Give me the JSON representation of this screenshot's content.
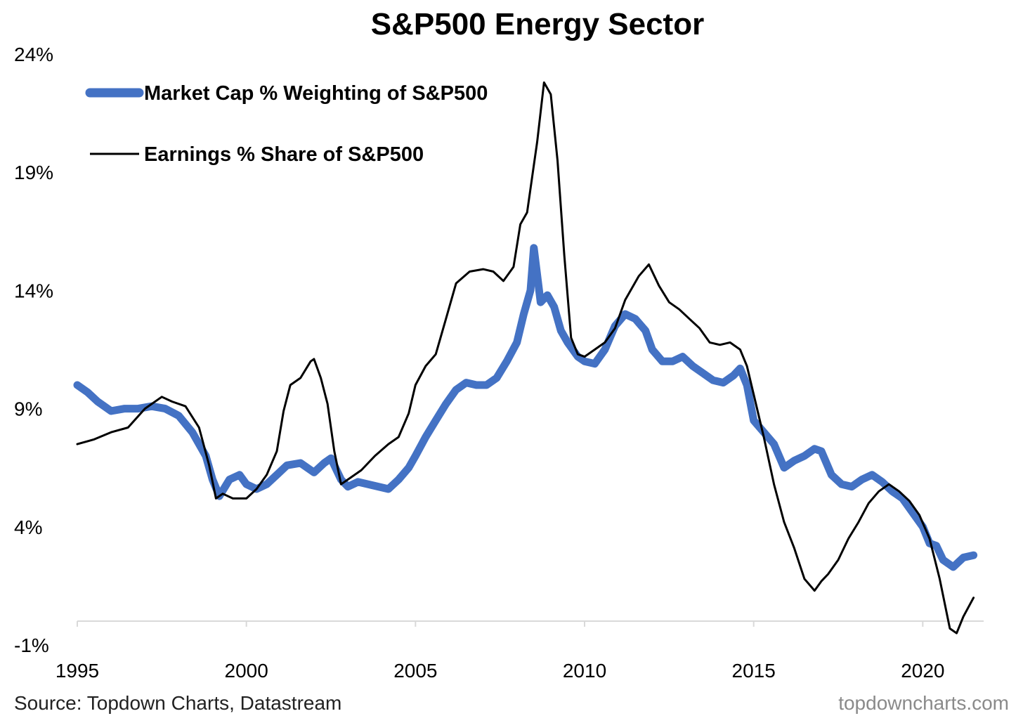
{
  "chart_data": {
    "type": "line",
    "title": "S&P500 Energy Sector",
    "subtitle": "",
    "xlabel": "",
    "ylabel": "",
    "xlim": [
      1995,
      2021.8
    ],
    "ylim": [
      -1,
      24
    ],
    "x_ticks": [
      1995,
      2000,
      2005,
      2010,
      2015,
      2020
    ],
    "x_tick_labels": [
      "1995",
      "2000",
      "2005",
      "2010",
      "2015",
      "2020"
    ],
    "y_ticks": [
      -1,
      4,
      9,
      14,
      19,
      24
    ],
    "y_tick_labels": [
      "-1%",
      "4%",
      "9%",
      "14%",
      "19%",
      "24%"
    ],
    "grid": false,
    "legend_position": "top-left",
    "series": [
      {
        "name": "Market Cap % Weighting of S&P500",
        "color": "#4472C4",
        "x": [
          1995.0,
          1995.3,
          1995.6,
          1996.0,
          1996.4,
          1996.8,
          1997.2,
          1997.6,
          1998.0,
          1998.4,
          1998.8,
          1999.0,
          1999.2,
          1999.5,
          1999.8,
          2000.0,
          2000.3,
          2000.6,
          2000.9,
          2001.2,
          2001.6,
          2002.0,
          2002.3,
          2002.5,
          2002.8,
          2003.0,
          2003.3,
          2003.6,
          2003.9,
          2004.2,
          2004.5,
          2004.8,
          2005.0,
          2005.3,
          2005.6,
          2005.9,
          2006.2,
          2006.5,
          2006.8,
          2007.1,
          2007.4,
          2007.7,
          2008.0,
          2008.2,
          2008.4,
          2008.5,
          2008.7,
          2008.9,
          2009.1,
          2009.3,
          2009.5,
          2009.8,
          2010.0,
          2010.3,
          2010.6,
          2010.9,
          2011.2,
          2011.5,
          2011.8,
          2012.0,
          2012.3,
          2012.6,
          2012.9,
          2013.2,
          2013.5,
          2013.8,
          2014.1,
          2014.4,
          2014.6,
          2014.8,
          2015.0,
          2015.3,
          2015.6,
          2015.9,
          2016.2,
          2016.5,
          2016.8,
          2017.0,
          2017.3,
          2017.6,
          2017.9,
          2018.2,
          2018.5,
          2018.8,
          2019.1,
          2019.4,
          2019.7,
          2020.0,
          2020.2,
          2020.4,
          2020.6,
          2020.9,
          2021.2,
          2021.5
        ],
        "y": [
          10.0,
          9.7,
          9.3,
          8.9,
          9.0,
          9.0,
          9.1,
          9.0,
          8.7,
          8.0,
          7.0,
          6.0,
          5.3,
          6.0,
          6.2,
          5.8,
          5.6,
          5.8,
          6.2,
          6.6,
          6.7,
          6.3,
          6.7,
          6.9,
          6.0,
          5.7,
          5.9,
          5.8,
          5.7,
          5.6,
          6.0,
          6.5,
          7.0,
          7.8,
          8.5,
          9.2,
          9.8,
          10.1,
          10.0,
          10.0,
          10.3,
          11.0,
          11.8,
          13.0,
          14.0,
          15.8,
          13.5,
          13.8,
          13.3,
          12.3,
          11.8,
          11.2,
          11.0,
          10.9,
          11.5,
          12.5,
          13.0,
          12.8,
          12.3,
          11.5,
          11.0,
          11.0,
          11.2,
          10.8,
          10.5,
          10.2,
          10.1,
          10.4,
          10.7,
          10.0,
          8.5,
          8.0,
          7.5,
          6.5,
          6.8,
          7.0,
          7.3,
          7.2,
          6.2,
          5.8,
          5.7,
          6.0,
          6.2,
          5.9,
          5.5,
          5.2,
          4.6,
          4.0,
          3.3,
          3.2,
          2.6,
          2.3,
          2.7,
          2.8
        ]
      },
      {
        "name": "Earnings % Share of S&P500",
        "color": "#000000",
        "x": [
          1995.0,
          1995.5,
          1996.0,
          1996.5,
          1997.0,
          1997.5,
          1997.8,
          1998.2,
          1998.6,
          1998.9,
          1999.1,
          1999.3,
          1999.6,
          2000.0,
          2000.3,
          2000.6,
          2000.9,
          2001.1,
          2001.3,
          2001.6,
          2001.9,
          2002.0,
          2002.2,
          2002.4,
          2002.6,
          2002.8,
          2003.0,
          2003.4,
          2003.8,
          2004.2,
          2004.5,
          2004.8,
          2005.0,
          2005.3,
          2005.6,
          2005.9,
          2006.2,
          2006.6,
          2007.0,
          2007.3,
          2007.6,
          2007.9,
          2008.1,
          2008.3,
          2008.5,
          2008.6,
          2008.8,
          2009.0,
          2009.2,
          2009.4,
          2009.6,
          2009.8,
          2010.0,
          2010.3,
          2010.6,
          2010.9,
          2011.2,
          2011.6,
          2011.9,
          2012.0,
          2012.2,
          2012.5,
          2012.8,
          2013.1,
          2013.4,
          2013.7,
          2014.0,
          2014.3,
          2014.6,
          2014.8,
          2015.0,
          2015.3,
          2015.6,
          2015.9,
          2016.2,
          2016.5,
          2016.8,
          2017.0,
          2017.2,
          2017.5,
          2017.8,
          2018.1,
          2018.4,
          2018.7,
          2019.0,
          2019.3,
          2019.6,
          2019.9,
          2020.2,
          2020.5,
          2020.8,
          2021.0,
          2021.2,
          2021.5
        ],
        "y": [
          7.5,
          7.7,
          8.0,
          8.2,
          9.0,
          9.5,
          9.3,
          9.1,
          8.2,
          6.6,
          5.2,
          5.4,
          5.2,
          5.2,
          5.6,
          6.2,
          7.2,
          8.9,
          10.0,
          10.3,
          11.0,
          11.1,
          10.3,
          9.2,
          7.2,
          5.8,
          6.0,
          6.4,
          7.0,
          7.5,
          7.8,
          8.8,
          10.0,
          10.8,
          11.3,
          12.8,
          14.3,
          14.8,
          14.9,
          14.8,
          14.4,
          15.0,
          16.8,
          17.3,
          19.3,
          20.3,
          22.8,
          22.3,
          19.5,
          15.5,
          12.0,
          11.3,
          11.2,
          11.5,
          11.8,
          12.4,
          13.6,
          14.6,
          15.1,
          14.8,
          14.2,
          13.5,
          13.2,
          12.8,
          12.4,
          11.8,
          11.7,
          11.8,
          11.5,
          10.8,
          9.6,
          7.8,
          5.8,
          4.2,
          3.1,
          1.8,
          1.3,
          1.7,
          2.0,
          2.6,
          3.5,
          4.2,
          5.0,
          5.5,
          5.8,
          5.5,
          5.1,
          4.5,
          3.5,
          1.8,
          -0.3,
          -0.5,
          0.2,
          1.0
        ]
      }
    ]
  },
  "footer": {
    "source": "Source: Topdown Charts, Datastream",
    "watermark": "topdowncharts.com"
  }
}
